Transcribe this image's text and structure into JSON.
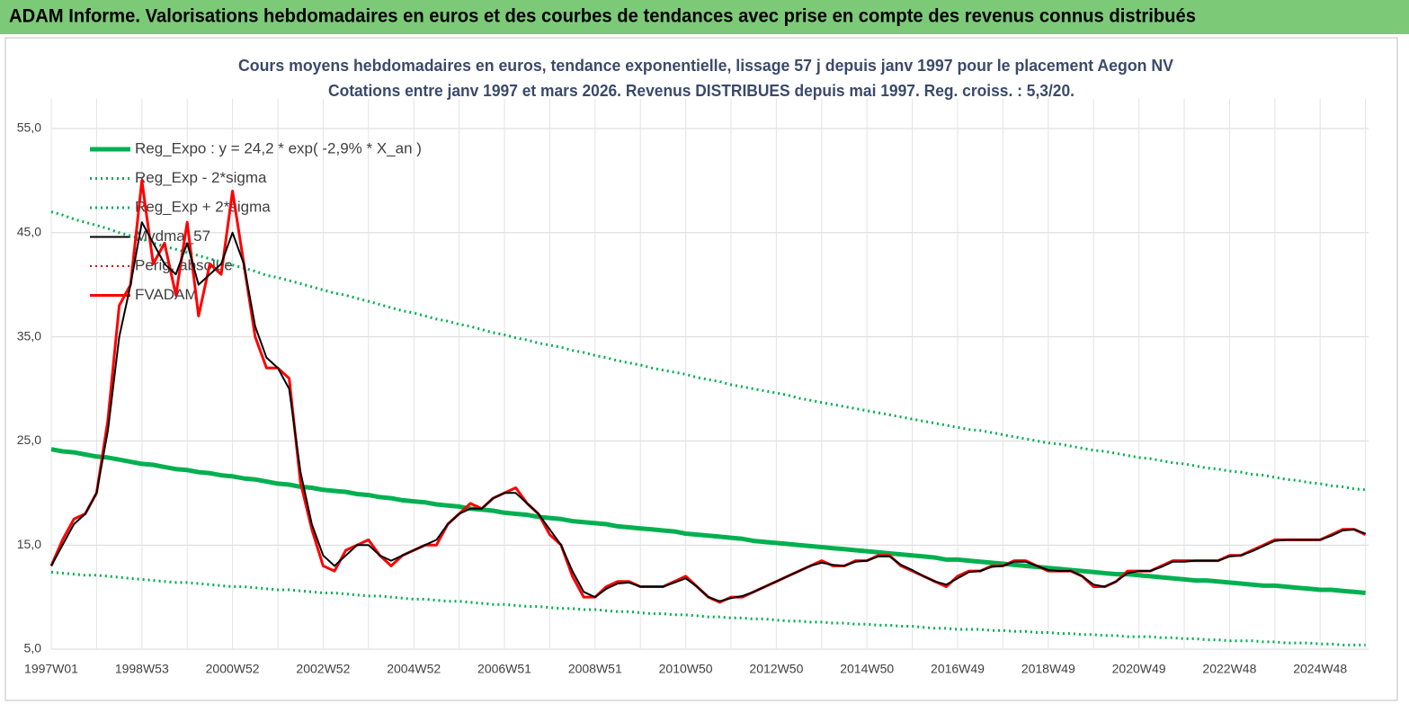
{
  "header": {
    "title": "ADAM Informe. Valorisations hebdomadaires en euros et des courbes de tendances avec prise en compte des revenus connus distribués"
  },
  "chart_data": {
    "type": "line",
    "title": "Cours moyens hebdomadaires en euros, tendance exponentielle, lissage 57 j depuis janv 1997 pour le placement Aegon NV",
    "subtitle": "Cotations entre janv 1997 et mars 2026. Revenus DISTRIBUES depuis mai 1997. Reg. croiss. : 5,3/20.",
    "categories": [
      "1997W01",
      null,
      null,
      null,
      null,
      null,
      null,
      null,
      "1998W53",
      null,
      null,
      null,
      null,
      null,
      null,
      null,
      "2000W52",
      null,
      null,
      null,
      null,
      null,
      null,
      null,
      "2002W52",
      null,
      null,
      null,
      null,
      null,
      null,
      null,
      "2004W52",
      null,
      null,
      null,
      null,
      null,
      null,
      null,
      "2006W51",
      null,
      null,
      null,
      null,
      null,
      null,
      null,
      "2008W51",
      null,
      null,
      null,
      null,
      null,
      null,
      null,
      "2010W50",
      null,
      null,
      null,
      null,
      null,
      null,
      null,
      "2012W50",
      null,
      null,
      null,
      null,
      null,
      null,
      null,
      "2014W50",
      null,
      null,
      null,
      null,
      null,
      null,
      null,
      "2016W49",
      null,
      null,
      null,
      null,
      null,
      null,
      null,
      "2018W49",
      null,
      null,
      null,
      null,
      null,
      null,
      null,
      "2020W49",
      null,
      null,
      null,
      null,
      null,
      null,
      null,
      "2022W48",
      null,
      null,
      null,
      null,
      null,
      null,
      null,
      "2024W48",
      null,
      null,
      null,
      null
    ],
    "ylim": [
      5,
      57
    ],
    "yticks": [
      {
        "value": 5,
        "label": "5,0"
      },
      {
        "value": 15,
        "label": "15,0"
      },
      {
        "value": 25,
        "label": "25,0"
      },
      {
        "value": 35,
        "label": "35,0"
      },
      {
        "value": 45,
        "label": "45,0"
      },
      {
        "value": 55,
        "label": "55,0"
      }
    ],
    "grid": true,
    "legend": "upper left",
    "series": [
      {
        "name": "Reg_Expo : y = 24,2 * exp( -2,9% *  X_an )",
        "color": "#00b050",
        "style": "solid",
        "width": 5,
        "values": [
          24.2,
          24.0,
          23.9,
          23.7,
          23.5,
          23.4,
          23.2,
          23.0,
          22.8,
          22.7,
          22.5,
          22.3,
          22.2,
          22.0,
          21.9,
          21.7,
          21.6,
          21.4,
          21.3,
          21.1,
          20.9,
          20.8,
          20.6,
          20.5,
          20.3,
          20.2,
          20.1,
          19.9,
          19.8,
          19.6,
          19.5,
          19.3,
          19.2,
          19.1,
          18.9,
          18.8,
          18.7,
          18.5,
          18.4,
          18.3,
          18.1,
          18.0,
          17.9,
          17.7,
          17.6,
          17.5,
          17.3,
          17.2,
          17.1,
          17.0,
          16.8,
          16.7,
          16.6,
          16.5,
          16.4,
          16.3,
          16.1,
          16.0,
          15.9,
          15.8,
          15.7,
          15.6,
          15.4,
          15.3,
          15.2,
          15.1,
          15.0,
          14.9,
          14.8,
          14.7,
          14.6,
          14.5,
          14.4,
          14.3,
          14.2,
          14.1,
          14.0,
          13.9,
          13.8,
          13.6,
          13.6,
          13.5,
          13.4,
          13.3,
          13.2,
          13.1,
          13.0,
          12.9,
          12.8,
          12.7,
          12.6,
          12.5,
          12.4,
          12.3,
          12.2,
          12.2,
          12.1,
          12.0,
          11.9,
          11.8,
          11.7,
          11.6,
          11.6,
          11.5,
          11.4,
          11.3,
          11.2,
          11.1,
          11.1,
          11.0,
          10.9,
          10.8,
          10.7,
          10.7,
          10.6,
          10.5,
          10.4
        ]
      },
      {
        "name": "Reg_Exp - 2*sigma",
        "color": "#00b050",
        "style": "dotted",
        "width": 3,
        "values": [
          12.4,
          12.3,
          12.2,
          12.1,
          12.1,
          12.0,
          11.9,
          11.8,
          11.7,
          11.6,
          11.5,
          11.4,
          11.4,
          11.3,
          11.2,
          11.1,
          11.0,
          11.0,
          10.9,
          10.8,
          10.7,
          10.7,
          10.6,
          10.5,
          10.4,
          10.4,
          10.3,
          10.2,
          10.1,
          10.1,
          10.0,
          9.9,
          9.8,
          9.8,
          9.7,
          9.6,
          9.6,
          9.5,
          9.4,
          9.3,
          9.3,
          9.2,
          9.1,
          9.1,
          9.0,
          8.9,
          8.9,
          8.8,
          8.8,
          8.7,
          8.6,
          8.6,
          8.5,
          8.4,
          8.4,
          8.3,
          8.3,
          8.2,
          8.1,
          8.1,
          8.0,
          8.0,
          7.9,
          7.9,
          7.8,
          7.7,
          7.7,
          7.6,
          7.6,
          7.5,
          7.5,
          7.4,
          7.4,
          7.3,
          7.3,
          7.2,
          7.2,
          7.1,
          7.0,
          7.0,
          6.9,
          6.9,
          6.9,
          6.8,
          6.8,
          6.7,
          6.7,
          6.6,
          6.6,
          6.5,
          6.5,
          6.4,
          6.4,
          6.3,
          6.3,
          6.2,
          6.2,
          6.2,
          6.1,
          6.1,
          6.0,
          6.0,
          5.9,
          5.9,
          5.8,
          5.8,
          5.8,
          5.7,
          5.7,
          5.6,
          5.6,
          5.6,
          5.5,
          5.5,
          5.4,
          5.4,
          5.4
        ]
      },
      {
        "name": "Reg_Exp + 2*sigma",
        "color": "#00b050",
        "style": "dotted",
        "width": 3,
        "values": [
          47.0,
          46.7,
          46.3,
          46.0,
          45.7,
          45.4,
          45.0,
          44.7,
          44.4,
          44.0,
          43.7,
          43.4,
          43.1,
          42.8,
          42.5,
          42.2,
          41.9,
          41.6,
          41.3,
          40.9,
          40.7,
          40.4,
          40.1,
          39.8,
          39.5,
          39.2,
          39.0,
          38.7,
          38.4,
          38.1,
          37.8,
          37.5,
          37.3,
          37.0,
          36.7,
          36.5,
          36.2,
          36.0,
          35.7,
          35.4,
          35.2,
          34.9,
          34.7,
          34.4,
          34.2,
          34.0,
          33.7,
          33.5,
          33.2,
          33.0,
          32.7,
          32.5,
          32.3,
          32.0,
          31.8,
          31.6,
          31.4,
          31.1,
          30.9,
          30.7,
          30.4,
          30.2,
          30.0,
          29.8,
          29.6,
          29.4,
          29.1,
          28.9,
          28.7,
          28.5,
          28.3,
          28.1,
          27.9,
          27.7,
          27.5,
          27.3,
          27.1,
          26.9,
          26.7,
          26.5,
          26.3,
          26.1,
          26.0,
          25.8,
          25.6,
          25.4,
          25.2,
          25.0,
          24.8,
          24.7,
          24.5,
          24.3,
          24.1,
          24.0,
          23.8,
          23.6,
          23.4,
          23.3,
          23.1,
          22.9,
          22.8,
          22.6,
          22.4,
          22.3,
          22.1,
          22.0,
          21.8,
          21.7,
          21.5,
          21.3,
          21.2,
          21.0,
          20.9,
          20.7,
          20.6,
          20.4,
          20.3
        ]
      },
      {
        "name": "Mvdma_57",
        "color": "#000000",
        "style": "solid",
        "width": 2,
        "values": [
          13,
          15,
          17,
          18,
          20,
          26,
          35,
          40,
          46,
          44,
          42,
          41,
          44,
          40,
          41,
          42,
          45,
          42,
          36,
          33,
          32,
          30,
          22,
          17,
          14,
          13,
          14,
          15,
          15,
          14,
          13.5,
          14,
          14.5,
          15,
          15.5,
          17,
          18,
          18.5,
          18.5,
          19.5,
          20,
          20,
          19,
          18,
          16.5,
          15,
          12.5,
          10.5,
          10,
          10.8,
          11.3,
          11.4,
          11,
          11,
          11,
          11.4,
          11.8,
          11,
          10,
          9.6,
          9.9,
          10.1,
          10.5,
          11,
          11.5,
          12,
          12.5,
          13,
          13.3,
          13.1,
          13,
          13.4,
          13.5,
          13.9,
          13.9,
          13.1,
          12.6,
          12,
          11.5,
          11.2,
          11.8,
          12.4,
          12.5,
          12.9,
          13,
          13.4,
          13.4,
          13,
          12.6,
          12.5,
          12.5,
          12,
          11.2,
          11,
          11.5,
          12.3,
          12.5,
          12.5,
          12.9,
          13.4,
          13.4,
          13.5,
          13.5,
          13.5,
          13.9,
          14,
          14.4,
          14.9,
          15.4,
          15.5,
          15.5,
          15.5,
          15.5,
          15.9,
          16.4,
          16.5,
          16.1
        ]
      },
      {
        "name": "Perig. absolue",
        "color": "#e00000",
        "style": "dotted",
        "width": 2,
        "values": [
          null,
          null,
          null,
          null,
          null,
          null,
          null,
          null,
          null,
          null,
          null,
          null,
          null,
          null,
          null,
          null,
          null,
          null,
          null,
          null,
          null,
          null,
          null,
          null,
          null,
          null,
          null,
          null,
          null,
          null,
          null,
          null,
          null,
          null,
          null,
          null,
          null,
          null,
          null,
          null,
          null,
          null,
          null,
          null,
          null,
          null,
          null,
          null,
          null,
          null,
          null,
          null,
          null,
          null,
          null,
          null,
          null,
          null,
          null,
          null,
          null,
          null,
          null,
          null,
          null,
          null,
          null,
          null,
          null,
          null,
          null,
          null,
          null,
          null,
          null,
          null,
          null,
          null,
          null,
          null,
          null,
          null,
          null,
          null,
          null,
          null,
          null,
          null,
          null,
          null,
          null,
          null,
          null,
          null,
          null,
          null,
          null,
          null,
          null,
          null,
          null,
          null,
          null,
          null,
          null,
          null,
          null,
          null,
          null,
          null,
          null,
          null,
          null,
          null,
          null,
          null,
          null
        ]
      },
      {
        "name": "FVADAM",
        "color": "#ff0000",
        "style": "solid",
        "width": 3,
        "values": [
          13,
          15.5,
          17.5,
          18,
          20,
          27,
          38,
          40,
          50,
          42,
          44,
          39,
          46,
          37,
          42,
          41,
          49,
          42,
          35,
          32,
          32,
          31,
          21,
          16.5,
          13,
          12.5,
          14.5,
          15,
          15.5,
          14,
          13,
          14,
          14.5,
          15,
          15,
          17,
          18,
          19,
          18.5,
          19.5,
          20,
          20.5,
          19,
          18,
          16,
          15,
          12,
          10,
          10,
          11,
          11.5,
          11.5,
          11,
          11,
          11,
          11.5,
          12,
          11,
          10,
          9.5,
          10,
          10,
          10.5,
          11,
          11.5,
          12,
          12.5,
          13,
          13.5,
          13,
          13,
          13.5,
          13.5,
          14,
          14,
          13,
          12.5,
          12,
          11.5,
          11,
          12,
          12.5,
          12.5,
          13,
          13,
          13.5,
          13.5,
          13,
          12.5,
          12.5,
          12.5,
          12,
          11,
          11,
          11.5,
          12.5,
          12.5,
          12.5,
          13,
          13.5,
          13.5,
          13.5,
          13.5,
          13.5,
          14,
          14,
          14.5,
          15,
          15.5,
          15.5,
          15.5,
          15.5,
          15.5,
          16,
          16.5,
          16.5,
          16
        ]
      }
    ]
  }
}
